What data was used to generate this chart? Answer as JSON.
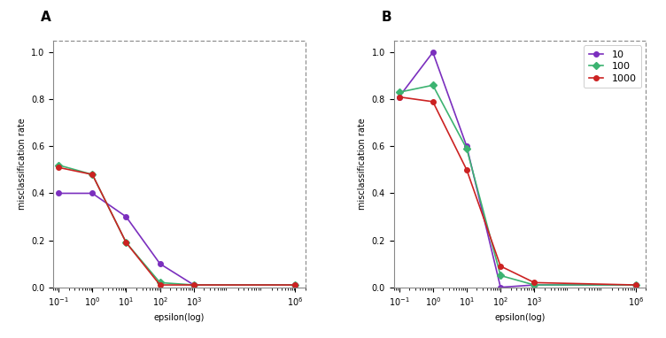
{
  "epsilon_values": [
    0.1,
    1.0,
    10.0,
    100.0,
    1000.0,
    1000000.0
  ],
  "panel_A": {
    "purple": [
      0.4,
      0.4,
      0.3,
      0.1,
      0.01,
      0.01
    ],
    "green": [
      0.52,
      0.48,
      0.19,
      0.02,
      0.01,
      0.01
    ],
    "red": [
      0.51,
      0.48,
      0.19,
      0.01,
      0.01,
      0.01
    ]
  },
  "panel_B": {
    "purple": [
      0.81,
      1.0,
      0.6,
      0.0,
      0.01,
      0.01
    ],
    "green": [
      0.83,
      0.86,
      0.59,
      0.05,
      0.01,
      0.01
    ],
    "red": [
      0.81,
      0.79,
      0.5,
      0.09,
      0.02,
      0.01
    ]
  },
  "colors": {
    "purple": "#7B2FBE",
    "green": "#3CB371",
    "red": "#CC2222"
  },
  "legend_labels": [
    "10",
    "100",
    "1000"
  ],
  "xlabel": "epsilon(log)",
  "ylabel": "misclassification rate",
  "ylim": [
    0.0,
    1.05
  ],
  "xlim_left": 0.07,
  "xlim_right": 2000000.0,
  "title_A": "A",
  "title_B": "B",
  "marker": "o",
  "marker_green": "D",
  "markersize": 4,
  "linewidth": 1.2,
  "fontsize_label": 7,
  "fontsize_tick": 7,
  "fontsize_title": 11,
  "fontsize_legend": 8
}
